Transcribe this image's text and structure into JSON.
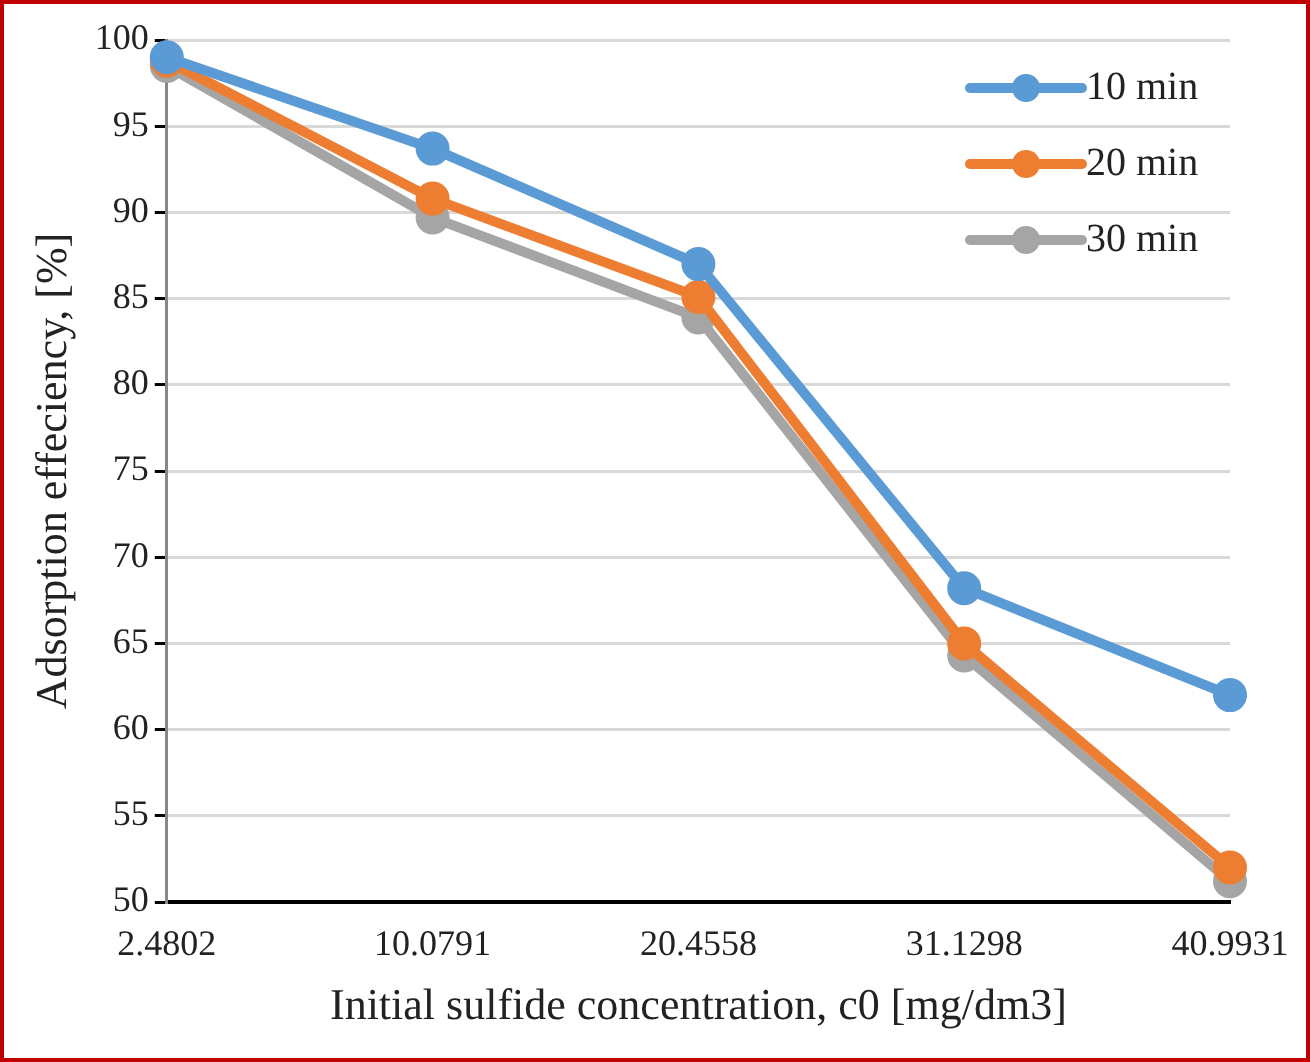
{
  "chart_data": {
    "type": "line",
    "xlabel": "Initial sulfide concentration, c0 [mg/dm3]",
    "ylabel": "Adsorption effeciency, [%]",
    "categories": [
      "2.4802",
      "10.0791",
      "20.4558",
      "31.1298",
      "40.9931"
    ],
    "series": [
      {
        "name": "10 min",
        "color": "#5b9bd5",
        "values": [
          99.0,
          93.7,
          87.0,
          68.2,
          62.0
        ]
      },
      {
        "name": "20 min",
        "color": "#ed7d31",
        "values": [
          98.8,
          90.8,
          85.1,
          65.0,
          52.0
        ]
      },
      {
        "name": "30 min",
        "color": "#a5a5a5",
        "values": [
          98.5,
          89.7,
          83.9,
          64.3,
          51.2
        ]
      }
    ],
    "ylim": [
      50,
      100
    ],
    "yticks": [
      50,
      55,
      60,
      65,
      70,
      75,
      80,
      85,
      90,
      95,
      100
    ],
    "grid": "y",
    "legend": "top right",
    "marker": "circle",
    "line_style": "solid"
  }
}
